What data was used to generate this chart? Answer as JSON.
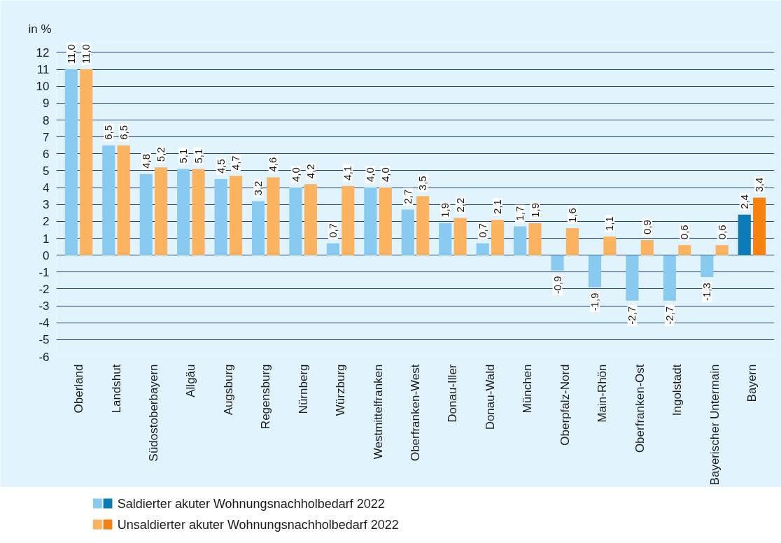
{
  "chart_data": {
    "type": "bar",
    "ylabel": "in %",
    "categories": [
      "Oberland",
      "Landshut",
      "Südostoberbayern",
      "Allgäu",
      "Augsburg",
      "Regensburg",
      "Nürnberg",
      "Würzburg",
      "Westmittelfranken",
      "Oberfranken-West",
      "Donau-Iller",
      "Donau-Wald",
      "München",
      "Oberpfalz-Nord",
      "Main-Rhön",
      "Oberfranken-Ost",
      "Ingolstadt",
      "Bayerischer Untermain",
      "Bayern"
    ],
    "series": [
      {
        "name": "Saldierter akuter Wohnungsnachholbedarf 2022",
        "colors": [
          "#89cbf0",
          "#89cbf0",
          "#89cbf0",
          "#89cbf0",
          "#89cbf0",
          "#89cbf0",
          "#89cbf0",
          "#89cbf0",
          "#89cbf0",
          "#89cbf0",
          "#89cbf0",
          "#89cbf0",
          "#89cbf0",
          "#89cbf0",
          "#89cbf0",
          "#89cbf0",
          "#89cbf0",
          "#89cbf0",
          "#0a7bb8"
        ],
        "values": [
          11.0,
          6.5,
          4.8,
          5.1,
          4.5,
          3.2,
          4.0,
          0.7,
          4.0,
          2.7,
          1.9,
          0.7,
          1.7,
          -0.9,
          -1.9,
          -2.7,
          -2.7,
          -1.3,
          2.4
        ],
        "value_labels": [
          "11,0",
          "6,5",
          "4,8",
          "5,1",
          "4,5",
          "3,2",
          "4,0",
          "0,7",
          "4,0",
          "2,7",
          "1,9",
          "0,7",
          "1,7",
          "-0,9",
          "-1,9",
          "-2,7",
          "-2,7",
          "-1,3",
          "2,4"
        ]
      },
      {
        "name": "Unsaldierter akuter Wohnungsnachholbedarf 2022",
        "colors": [
          "#fbb360",
          "#fbb360",
          "#fbb360",
          "#fbb360",
          "#fbb360",
          "#fbb360",
          "#fbb360",
          "#fbb360",
          "#fbb360",
          "#fbb360",
          "#fbb360",
          "#fbb360",
          "#fbb360",
          "#fbb360",
          "#fbb360",
          "#fbb360",
          "#fbb360",
          "#fbb360",
          "#f7820f"
        ],
        "values": [
          11.0,
          6.5,
          5.2,
          5.1,
          4.7,
          4.6,
          4.2,
          4.1,
          4.0,
          3.5,
          2.2,
          2.1,
          1.9,
          1.6,
          1.1,
          0.9,
          0.6,
          0.6,
          3.4
        ],
        "value_labels": [
          "11,0",
          "6,5",
          "5,2",
          "5,1",
          "4,7",
          "4,6",
          "4,2",
          "4,1",
          "4,0",
          "3,5",
          "2,2",
          "2,1",
          "1,9",
          "1,6",
          "1,1",
          "0,9",
          "0,6",
          "0,6",
          "3,4"
        ]
      }
    ],
    "ylim": [
      -6,
      12.6
    ],
    "yticks": [
      -6,
      -5,
      -4,
      -3,
      -2,
      -1,
      0,
      1,
      2,
      3,
      4,
      5,
      6,
      7,
      8,
      9,
      10,
      11,
      12
    ],
    "grid": "y",
    "legend": "bottom"
  }
}
